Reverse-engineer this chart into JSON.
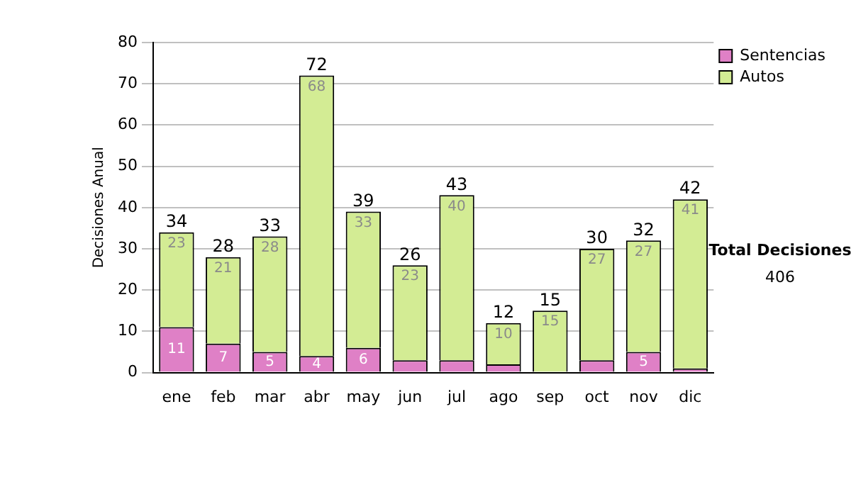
{
  "chart_data": {
    "type": "bar",
    "stacked": true,
    "ylabel": "Decisiones Anual",
    "categories": [
      "ene",
      "feb",
      "mar",
      "abr",
      "may",
      "jun",
      "jul",
      "ago",
      "sep",
      "oct",
      "nov",
      "dic"
    ],
    "series": [
      {
        "name": "Sentencias",
        "color": "#df80c6",
        "values": [
          11,
          7,
          5,
          4,
          6,
          3,
          3,
          2,
          0,
          3,
          5,
          1
        ],
        "value_labels": [
          "11",
          "7",
          "5",
          "4",
          "6",
          null,
          null,
          null,
          null,
          null,
          "5",
          null
        ]
      },
      {
        "name": "Autos",
        "color": "#d3ec94",
        "values": [
          23,
          21,
          28,
          68,
          33,
          23,
          40,
          10,
          15,
          27,
          27,
          41
        ],
        "value_labels": [
          "23",
          "21",
          "28",
          "68",
          "33",
          "23",
          "40",
          "10",
          "15",
          "27",
          "27",
          "41"
        ]
      }
    ],
    "totals": [
      "34",
      "28",
      "33",
      "72",
      "39",
      "26",
      "43",
      "12",
      "15",
      "30",
      "32",
      "42"
    ],
    "ylim": [
      0,
      80
    ],
    "yticks": [
      0,
      10,
      20,
      30,
      40,
      50,
      60,
      70,
      80
    ],
    "grid": "y",
    "legend": "right",
    "annotations": [
      "Total Decisiones",
      "406"
    ]
  }
}
